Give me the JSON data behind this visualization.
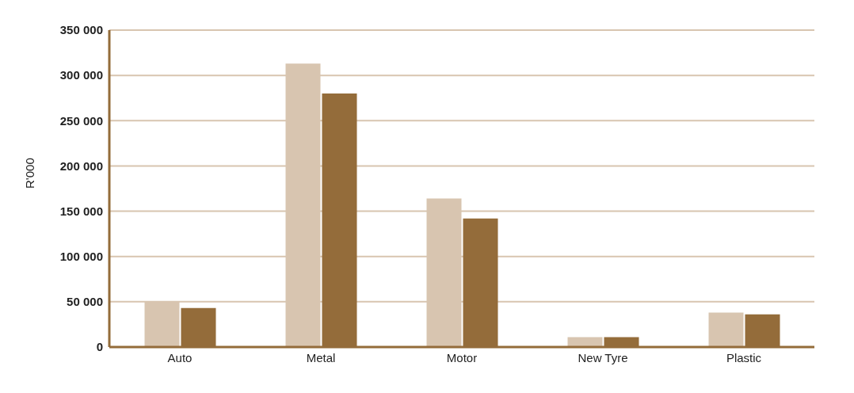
{
  "chart_data": {
    "type": "bar",
    "ylabel": "R'000",
    "categories": [
      "Auto",
      "Metal",
      "Motor",
      "New Tyre",
      "Plastic"
    ],
    "series": [
      {
        "color": "#d8c5b0",
        "values": [
          50000,
          313000,
          164000,
          11000,
          38000
        ]
      },
      {
        "color": "#946c3a",
        "values": [
          43000,
          280000,
          142000,
          11000,
          36000
        ]
      }
    ],
    "ylim": [
      0,
      350000
    ],
    "yticks": [
      {
        "value": 0,
        "label": "0"
      },
      {
        "value": 50000,
        "label": "50 000"
      },
      {
        "value": 100000,
        "label": "100 000"
      },
      {
        "value": 150000,
        "label": "150 000"
      },
      {
        "value": 200000,
        "label": "200 000"
      },
      {
        "value": 250000,
        "label": "250 000"
      },
      {
        "value": 300000,
        "label": "300 000"
      },
      {
        "value": 350000,
        "label": "350 000"
      }
    ],
    "grid": "y"
  }
}
